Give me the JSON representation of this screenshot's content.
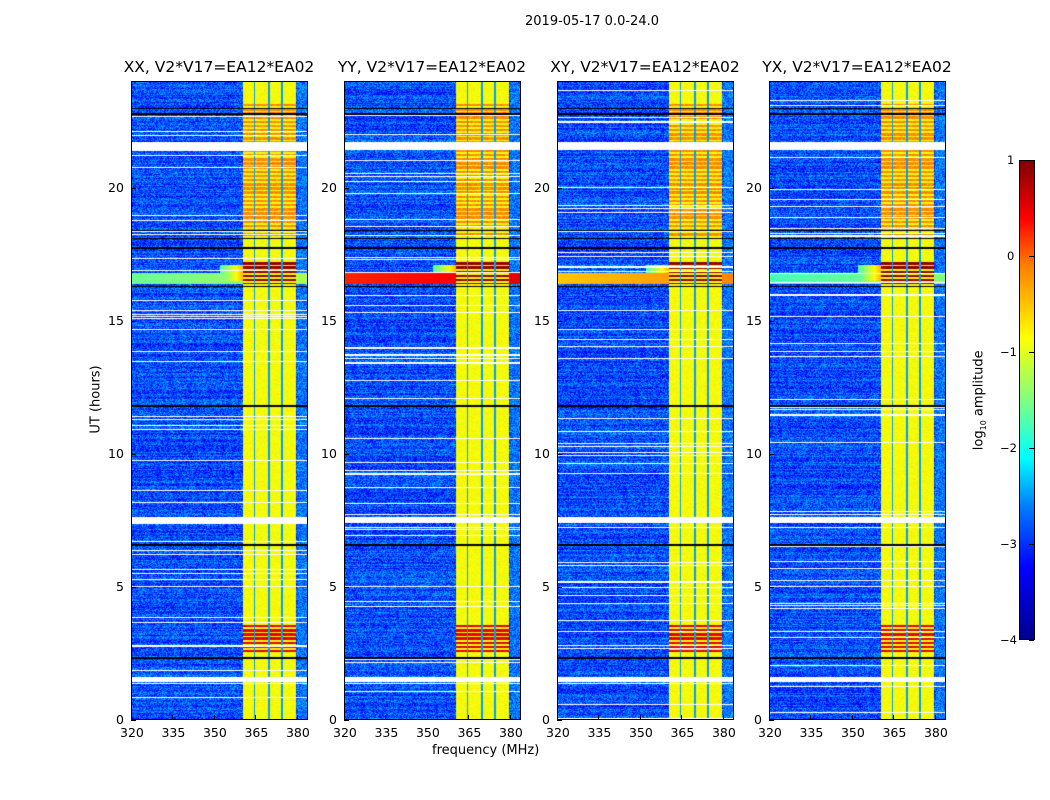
{
  "figure_title": "2019-05-17 0.0-24.0",
  "chart_data": {
    "type": "heatmap",
    "title": "2019-05-17 0.0-24.0",
    "xlabel": "frequency (MHz)",
    "ylabel": "UT (hours)",
    "xlim": [
      320,
      384
    ],
    "ylim": [
      0,
      24
    ],
    "xticks": [
      "320",
      "335",
      "350",
      "365",
      "380"
    ],
    "yticks": [
      "0",
      "5",
      "10",
      "15",
      "20"
    ],
    "panels": [
      {
        "title": "XX, V2*V17=EA12*EA02",
        "event_level": -1.6
      },
      {
        "title": "YY, V2*V17=EA12*EA02",
        "event_level": 0.2
      },
      {
        "title": "XY, V2*V17=EA12*EA02",
        "event_level": -0.6
      },
      {
        "title": "YX, V2*V17=EA12*EA02",
        "event_level": -1.8
      }
    ],
    "features": {
      "background_log_amp": -3.0,
      "rfi_band_mhz": [
        360.5,
        380
      ],
      "rfi_band_log_amp": -0.9,
      "rfi_subband_gaps_mhz": [
        364.8,
        370.0,
        375.0
      ],
      "strong_events_hours": [
        [
          16.4,
          17.2,
          0.9
        ],
        [
          2.5,
          3.6,
          0.5
        ],
        [
          18.2,
          23.2,
          -0.3
        ]
      ],
      "flagged_hours": [
        [
          21.45,
          21.75
        ],
        [
          7.4,
          7.6
        ],
        [
          1.4,
          1.6
        ]
      ],
      "gap_lines_hours": [
        23.0,
        18.1,
        17.75,
        16.3,
        11.8,
        6.55,
        2.3,
        18.4,
        22.8
      ]
    },
    "colorbar": {
      "label": "log",
      "label_sub": "10",
      "label_rest": " amplitude",
      "range": [
        -4,
        1
      ],
      "ticks": [
        "1",
        "0",
        "−1",
        "−2",
        "−3",
        "−4"
      ],
      "colormap": "jet"
    }
  }
}
